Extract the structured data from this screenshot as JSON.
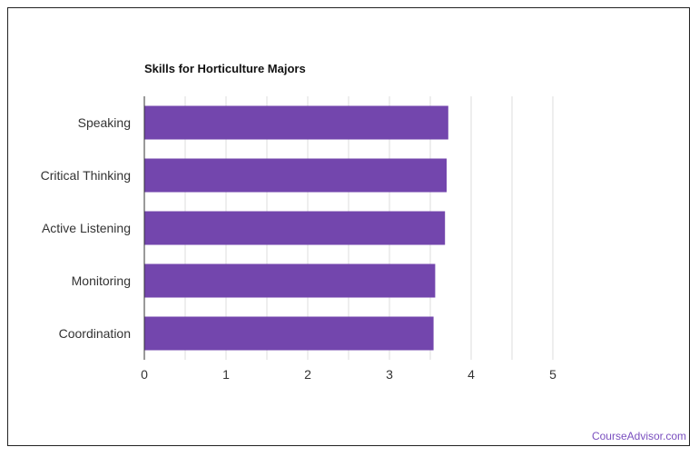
{
  "chart_data": {
    "type": "bar",
    "orientation": "horizontal",
    "title": "Skills for Horticulture Majors",
    "categories": [
      "Speaking",
      "Critical Thinking",
      "Active Listening",
      "Monitoring",
      "Coordination"
    ],
    "values": [
      3.72,
      3.7,
      3.68,
      3.56,
      3.54
    ],
    "xlim": [
      0,
      5
    ],
    "xticks": [
      0,
      1,
      2,
      3,
      4,
      5
    ],
    "grid": true,
    "bar_color": "#7346ad",
    "grid_color": "#dddddd"
  },
  "footer": {
    "source": "CourseAdvisor.com"
  }
}
